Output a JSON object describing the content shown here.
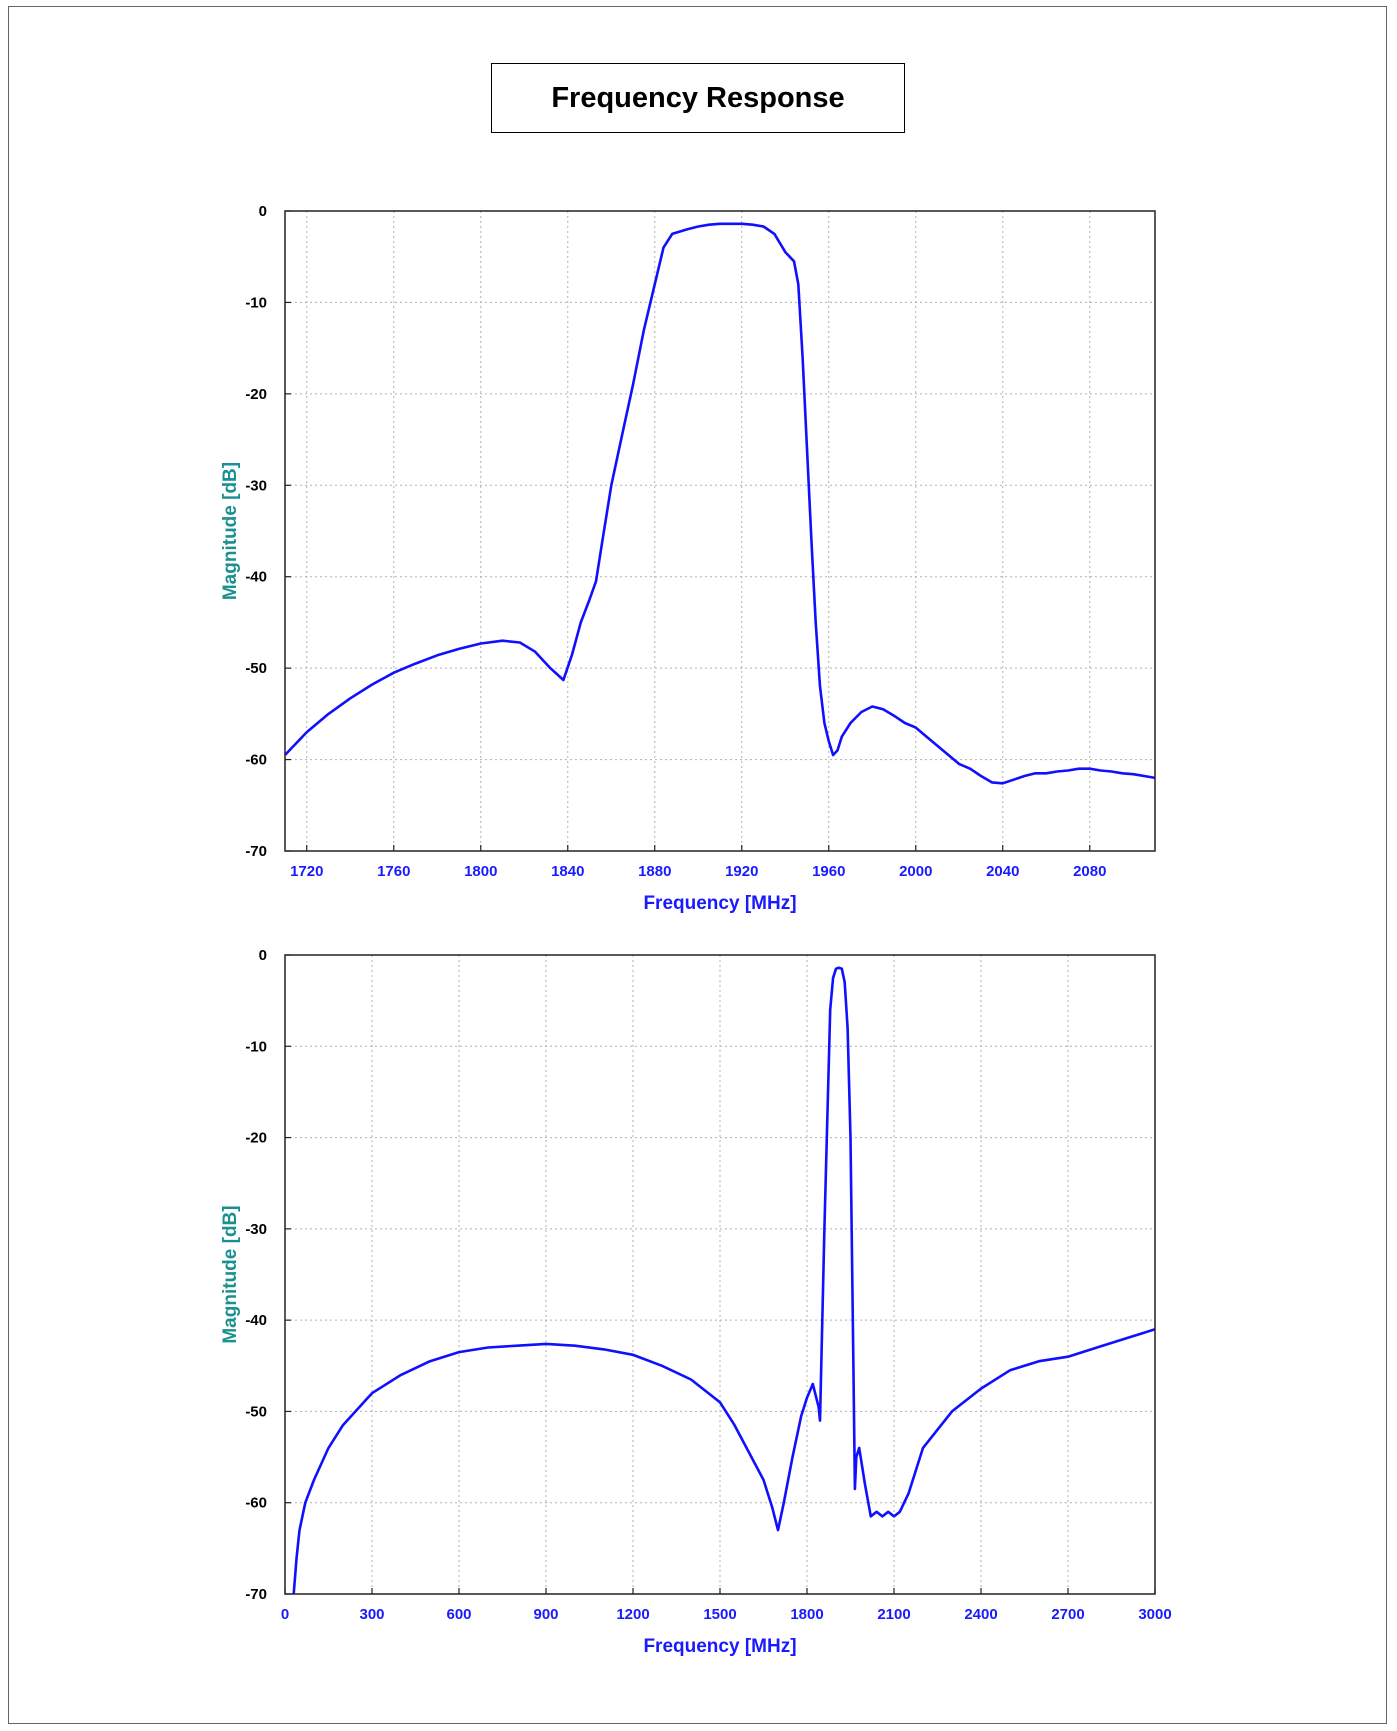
{
  "page": {
    "title": "Frequency Response"
  },
  "colors": {
    "trace": "#1010ff",
    "grid": "#b0b0b0",
    "xaxis_text": "#1a1aff",
    "yaxis_title": "#1a9090"
  },
  "chart_data": [
    {
      "type": "line",
      "xlabel": "Frequency [MHz]",
      "ylabel": "Magnitude [dB]",
      "xlim": [
        1710,
        2110
      ],
      "ylim": [
        -70,
        0
      ],
      "xticks": [
        1720,
        1760,
        1800,
        1840,
        1880,
        1920,
        1960,
        2000,
        2040,
        2080
      ],
      "yticks": [
        0,
        -10,
        -20,
        -30,
        -40,
        -50,
        -60,
        -70
      ],
      "grid": true,
      "series": [
        {
          "x": [
            1710,
            1720,
            1730,
            1740,
            1750,
            1760,
            1770,
            1780,
            1790,
            1800,
            1810,
            1818,
            1825,
            1832,
            1838,
            1842,
            1846,
            1850,
            1853,
            1856,
            1860,
            1865,
            1870,
            1875,
            1880,
            1884,
            1888,
            1895,
            1900,
            1905,
            1910,
            1915,
            1920,
            1925,
            1930,
            1935,
            1940,
            1944,
            1946,
            1948,
            1950,
            1952,
            1954,
            1956,
            1958,
            1960,
            1962,
            1964,
            1966,
            1970,
            1975,
            1980,
            1985,
            1990,
            1995,
            2000,
            2005,
            2010,
            2015,
            2020,
            2025,
            2030,
            2035,
            2040,
            2045,
            2050,
            2055,
            2060,
            2065,
            2070,
            2075,
            2080,
            2085,
            2090,
            2095,
            2100,
            2105,
            2110
          ],
          "y": [
            -59.5,
            -57.0,
            -55.0,
            -53.3,
            -51.8,
            -50.5,
            -49.5,
            -48.6,
            -47.9,
            -47.3,
            -47.0,
            -47.2,
            -48.2,
            -50.0,
            -51.3,
            -48.5,
            -45.0,
            -42.5,
            -40.5,
            -36.0,
            -30.0,
            -24.5,
            -19.0,
            -13.0,
            -8.0,
            -4.0,
            -2.5,
            -2.0,
            -1.7,
            -1.5,
            -1.4,
            -1.4,
            -1.4,
            -1.5,
            -1.7,
            -2.5,
            -4.5,
            -5.5,
            -8.0,
            -16.0,
            -26.0,
            -36.0,
            -45.0,
            -52.0,
            -56.0,
            -58.0,
            -59.5,
            -59.0,
            -57.5,
            -56.0,
            -54.8,
            -54.2,
            -54.5,
            -55.2,
            -56.0,
            -56.5,
            -57.5,
            -58.5,
            -59.5,
            -60.5,
            -61.0,
            -61.8,
            -62.5,
            -62.6,
            -62.2,
            -61.8,
            -61.5,
            -61.5,
            -61.3,
            -61.2,
            -61.0,
            -61.0,
            -61.2,
            -61.3,
            -61.5,
            -61.6,
            -61.8,
            -62.0
          ]
        }
      ]
    },
    {
      "type": "line",
      "xlabel": "Frequency [MHz]",
      "ylabel": "Magnitude [dB]",
      "xlim": [
        0,
        3000
      ],
      "ylim": [
        -70,
        0
      ],
      "xticks": [
        0,
        300,
        600,
        900,
        1200,
        1500,
        1800,
        2100,
        2400,
        2700,
        3000
      ],
      "yticks": [
        0,
        -10,
        -20,
        -30,
        -40,
        -50,
        -60,
        -70
      ],
      "grid": true,
      "series": [
        {
          "x": [
            30,
            40,
            50,
            70,
            100,
            150,
            200,
            300,
            400,
            500,
            600,
            700,
            800,
            900,
            1000,
            1100,
            1200,
            1300,
            1400,
            1500,
            1550,
            1600,
            1650,
            1680,
            1700,
            1720,
            1750,
            1780,
            1800,
            1820,
            1840,
            1845,
            1860,
            1880,
            1890,
            1900,
            1910,
            1920,
            1930,
            1940,
            1950,
            1960,
            1965,
            1970,
            1980,
            1990,
            2000,
            2020,
            2040,
            2060,
            2080,
            2100,
            2120,
            2150,
            2200,
            2300,
            2400,
            2500,
            2600,
            2700,
            2800,
            2900,
            3000
          ],
          "y": [
            -70,
            -66,
            -63,
            -60,
            -57.5,
            -54,
            -51.5,
            -48.0,
            -46.0,
            -44.5,
            -43.5,
            -43.0,
            -42.8,
            -42.6,
            -42.8,
            -43.2,
            -43.8,
            -45.0,
            -46.5,
            -49.0,
            -51.5,
            -54.5,
            -57.5,
            -60.5,
            -63.0,
            -60.0,
            -55.0,
            -50.5,
            -48.5,
            -47.0,
            -49.5,
            -51.0,
            -30.0,
            -6.0,
            -2.5,
            -1.5,
            -1.4,
            -1.5,
            -3.0,
            -8.0,
            -20.0,
            -45.0,
            -58.5,
            -55.0,
            -54.0,
            -56.0,
            -58.0,
            -61.5,
            -61.0,
            -61.5,
            -61.0,
            -61.5,
            -61.0,
            -59.0,
            -54.0,
            -50.0,
            -47.5,
            -45.5,
            -44.5,
            -44.0,
            -43.0,
            -42.0,
            -41.0
          ]
        }
      ]
    }
  ]
}
